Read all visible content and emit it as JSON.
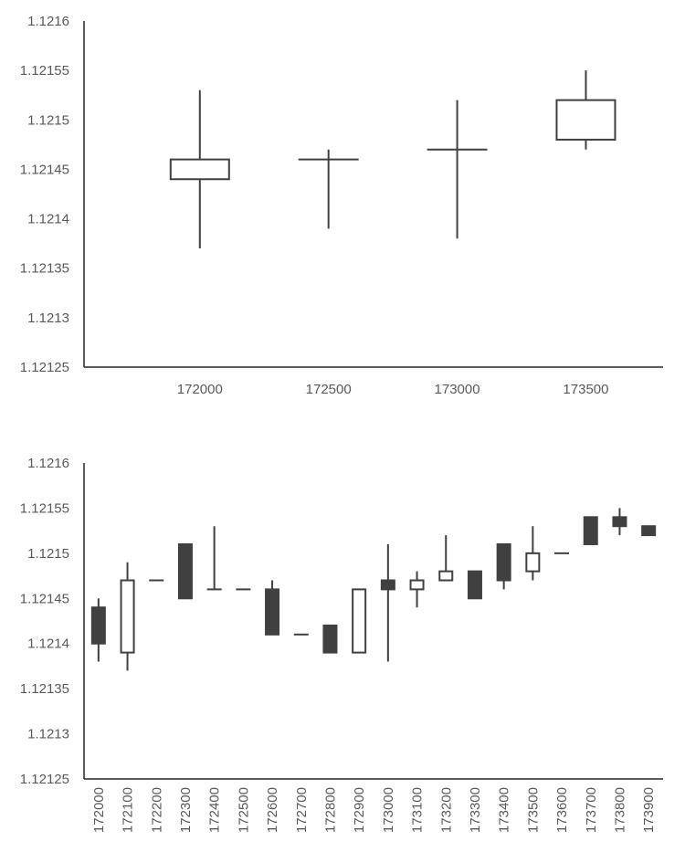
{
  "chart_data": [
    {
      "type": "candlestick",
      "ylim": [
        1.12125,
        1.1216
      ],
      "yticks": [
        "1.1216",
        "1.12155",
        "1.1215",
        "1.12145",
        "1.1214",
        "1.12135",
        "1.1213",
        "1.12125"
      ],
      "xticks": [
        "172000",
        "172500",
        "173000",
        "173500"
      ],
      "candles": [
        {
          "x": 172000,
          "open": 1.12144,
          "high": 1.12153,
          "low": 1.12137,
          "close": 1.12146
        },
        {
          "x": 172500,
          "open": 1.12146,
          "high": 1.12147,
          "low": 1.12139,
          "close": 1.12146
        },
        {
          "x": 173000,
          "open": 1.12147,
          "high": 1.12152,
          "low": 1.12138,
          "close": 1.12147
        },
        {
          "x": 173500,
          "open": 1.12148,
          "high": 1.12155,
          "low": 1.12147,
          "close": 1.12152
        }
      ]
    },
    {
      "type": "candlestick",
      "ylim": [
        1.12125,
        1.1216
      ],
      "yticks": [
        "1.1216",
        "1.12155",
        "1.1215",
        "1.12145",
        "1.1214",
        "1.12135",
        "1.1213",
        "1.12125"
      ],
      "xticks": [
        "172000",
        "172100",
        "172200",
        "172300",
        "172400",
        "172500",
        "172600",
        "172700",
        "172800",
        "172900",
        "173000",
        "173100",
        "173200",
        "173300",
        "173400",
        "173500",
        "173600",
        "173700",
        "173800",
        "173900"
      ],
      "candles": [
        {
          "x": 172000,
          "open": 1.12144,
          "high": 1.12145,
          "low": 1.12138,
          "close": 1.1214
        },
        {
          "x": 172100,
          "open": 1.12139,
          "high": 1.12149,
          "low": 1.12137,
          "close": 1.12147
        },
        {
          "x": 172200,
          "open": 1.12147,
          "high": 1.12147,
          "low": 1.12147,
          "close": 1.12147
        },
        {
          "x": 172300,
          "open": 1.12151,
          "high": 1.12151,
          "low": 1.12145,
          "close": 1.12145
        },
        {
          "x": 172400,
          "open": 1.12146,
          "high": 1.12153,
          "low": 1.12146,
          "close": 1.12146
        },
        {
          "x": 172500,
          "open": 1.12146,
          "high": 1.12146,
          "low": 1.12146,
          "close": 1.12146
        },
        {
          "x": 172600,
          "open": 1.12146,
          "high": 1.12147,
          "low": 1.12141,
          "close": 1.12141
        },
        {
          "x": 172700,
          "open": 1.12141,
          "high": 1.12141,
          "low": 1.12141,
          "close": 1.12141
        },
        {
          "x": 172800,
          "open": 1.12142,
          "high": 1.12142,
          "low": 1.12139,
          "close": 1.12139
        },
        {
          "x": 172900,
          "open": 1.12139,
          "high": 1.12146,
          "low": 1.12139,
          "close": 1.12146
        },
        {
          "x": 173000,
          "open": 1.12147,
          "high": 1.12151,
          "low": 1.12138,
          "close": 1.12146
        },
        {
          "x": 173100,
          "open": 1.12146,
          "high": 1.12148,
          "low": 1.12144,
          "close": 1.12147
        },
        {
          "x": 173200,
          "open": 1.12147,
          "high": 1.12152,
          "low": 1.12147,
          "close": 1.12148
        },
        {
          "x": 173300,
          "open": 1.12148,
          "high": 1.12148,
          "low": 1.12145,
          "close": 1.12145
        },
        {
          "x": 173400,
          "open": 1.12151,
          "high": 1.12151,
          "low": 1.12146,
          "close": 1.12147
        },
        {
          "x": 173500,
          "open": 1.12148,
          "high": 1.12153,
          "low": 1.12147,
          "close": 1.1215
        },
        {
          "x": 173600,
          "open": 1.1215,
          "high": 1.1215,
          "low": 1.1215,
          "close": 1.1215
        },
        {
          "x": 173700,
          "open": 1.12154,
          "high": 1.12154,
          "low": 1.12151,
          "close": 1.12151
        },
        {
          "x": 173800,
          "open": 1.12154,
          "high": 1.12155,
          "low": 1.12152,
          "close": 1.12153
        },
        {
          "x": 173900,
          "open": 1.12153,
          "high": 1.12153,
          "low": 1.12152,
          "close": 1.12152
        }
      ]
    }
  ]
}
